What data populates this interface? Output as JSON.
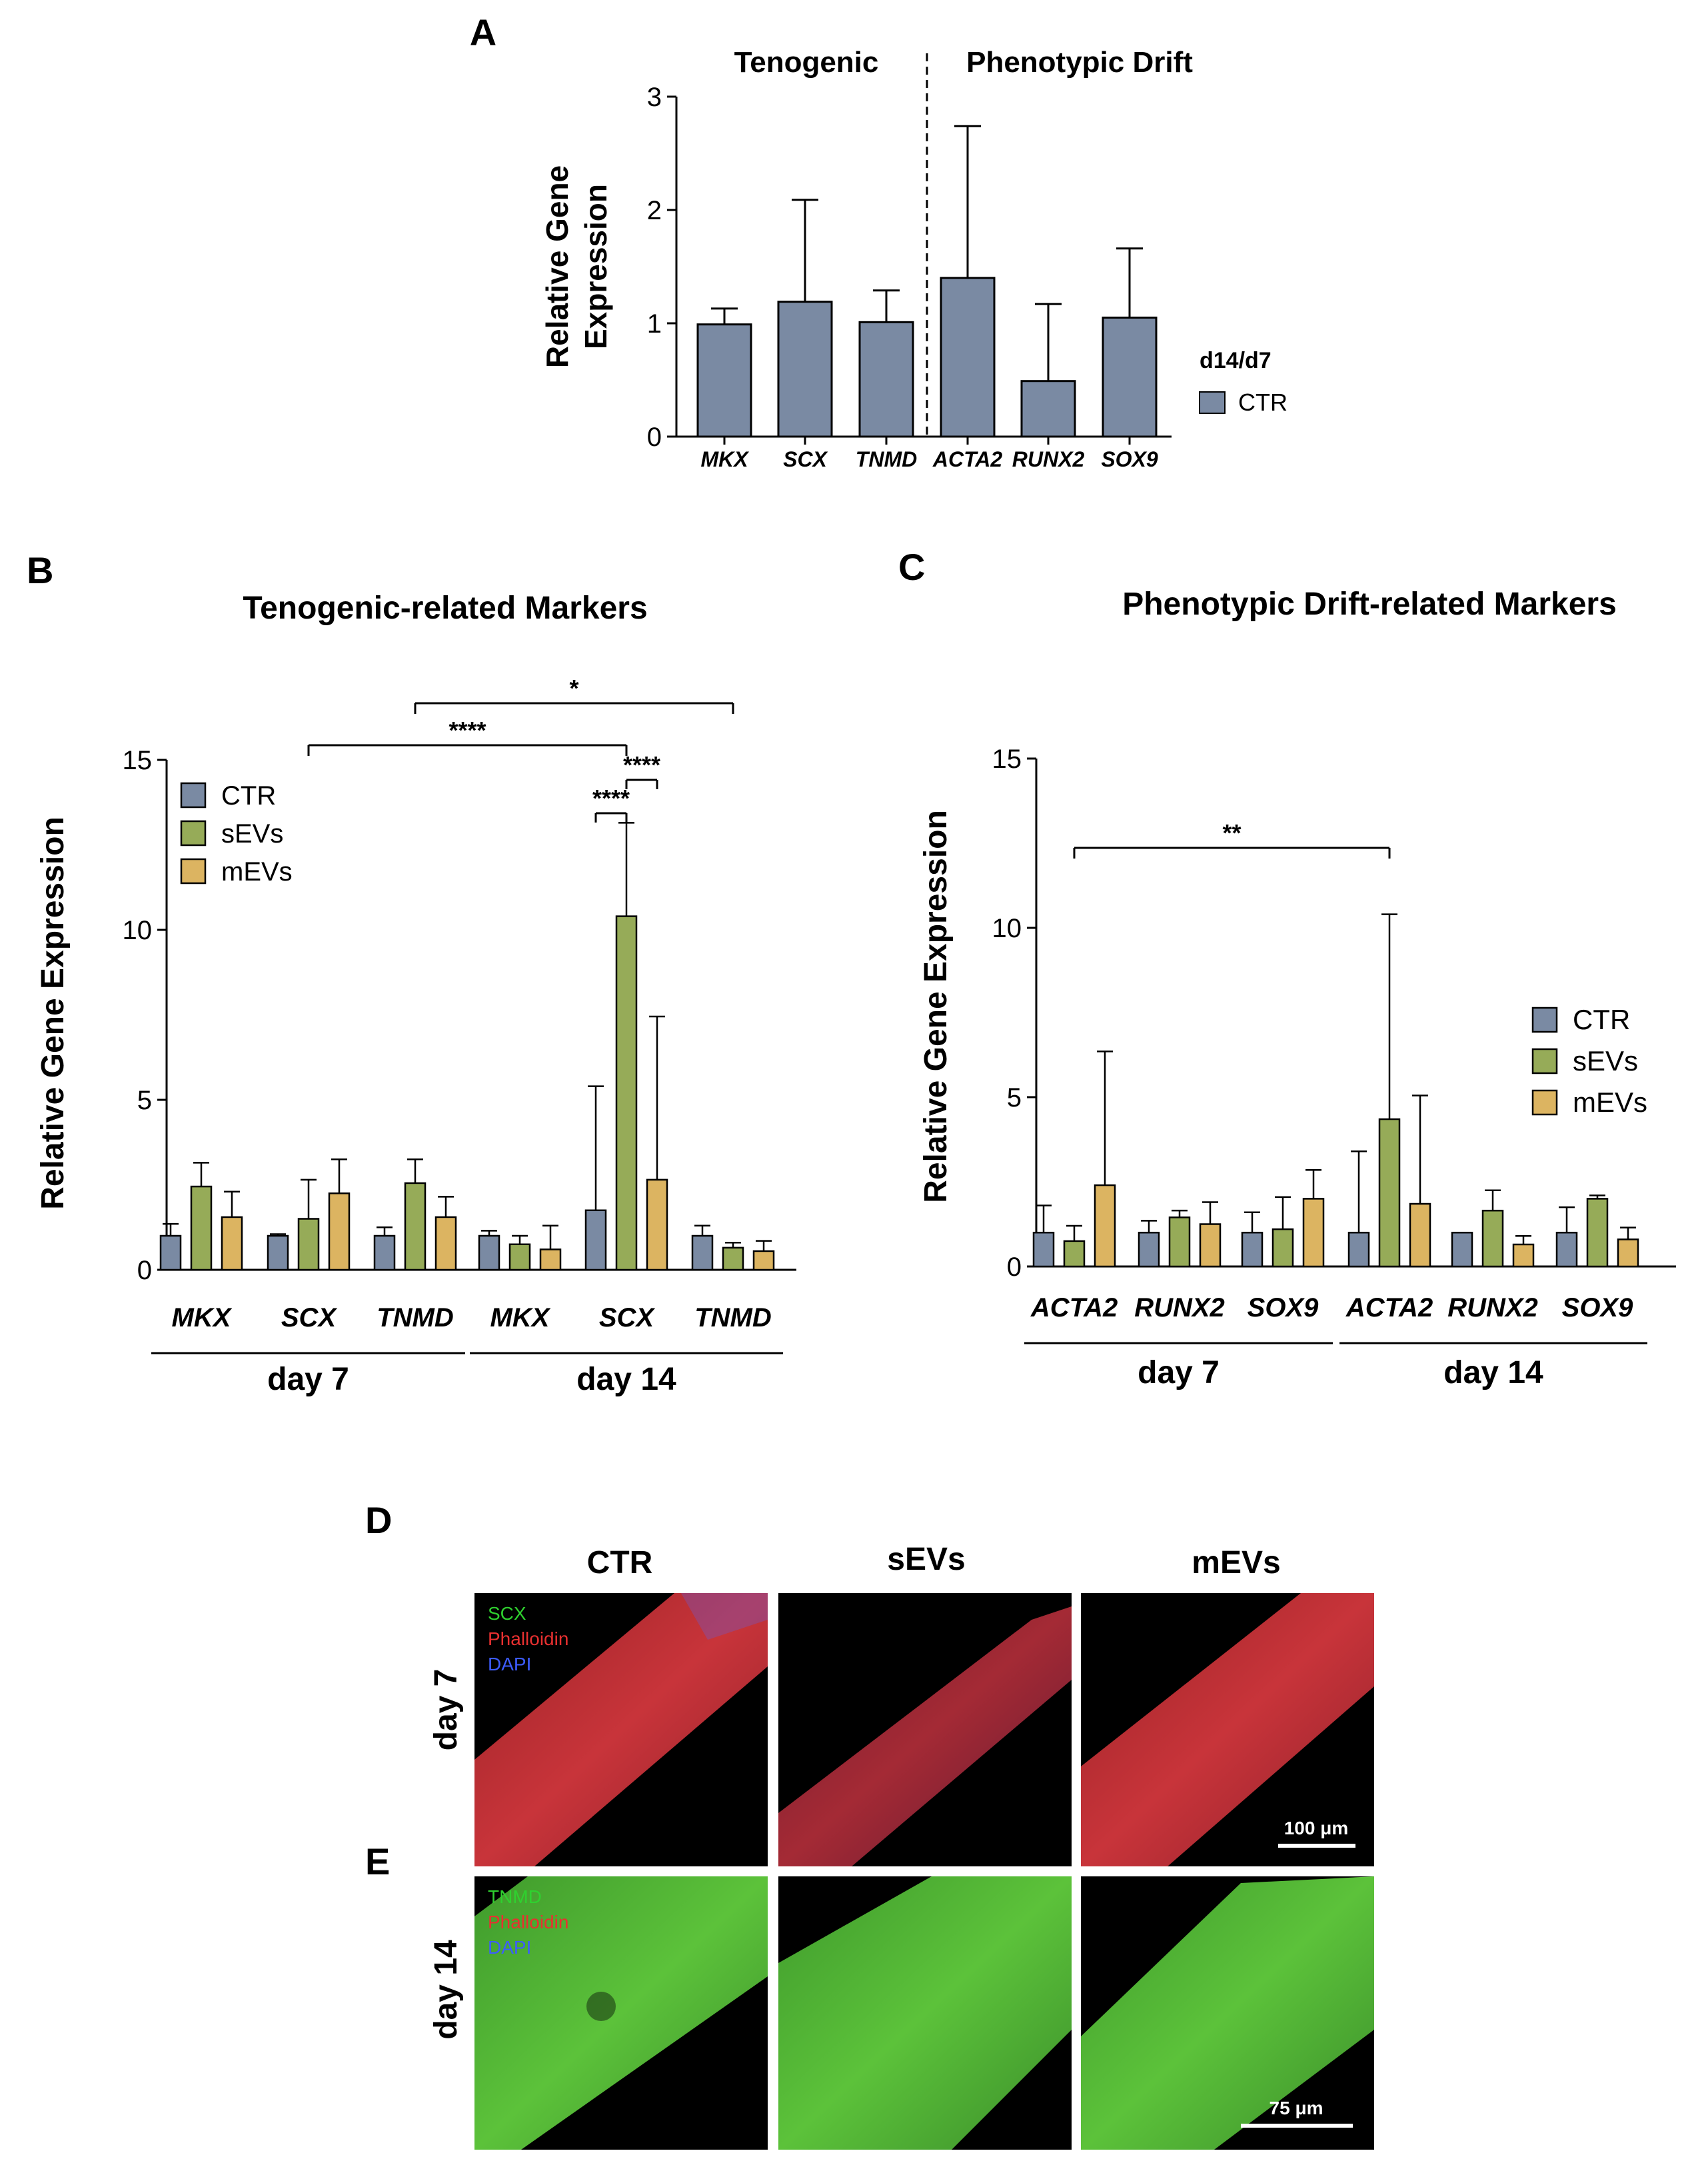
{
  "panels": {
    "A": {
      "letter": "A",
      "group_left": "Tenogenic",
      "group_right": "Phenotypic Drift",
      "legend_title": "d14/d7",
      "legend_item": "CTR"
    },
    "B": {
      "letter": "B",
      "title": "Tenogenic-related Markers"
    },
    "C": {
      "letter": "C",
      "title": "Phenotypic Drift-related Markers"
    },
    "D": {
      "letter": "D"
    },
    "E": {
      "letter": "E"
    }
  },
  "colors": {
    "CTR": "#7a8aa3",
    "sEVs": "#96ab58",
    "mEVs": "#dcb461",
    "axis": "#000000"
  },
  "chart_data": [
    {
      "id": "A",
      "type": "bar",
      "ylabel": "Relative Gene Expression",
      "ylim": [
        0,
        3
      ],
      "yticks": [
        0,
        1,
        2,
        3
      ],
      "categories": [
        "MKX",
        "SCX",
        "TNMD",
        "ACTA2",
        "RUNX2",
        "SOX9"
      ],
      "series": [
        {
          "name": "CTR",
          "values": [
            0.99,
            1.19,
            1.01,
            1.4,
            0.49,
            1.05
          ],
          "errors": [
            1.13,
            2.09,
            1.29,
            2.74,
            1.17,
            1.66
          ]
        }
      ],
      "divider_after_index": 2
    },
    {
      "id": "B",
      "type": "bar",
      "ylabel": "Relative Gene Expression",
      "ylim": [
        0,
        15
      ],
      "yticks": [
        0,
        5,
        10,
        15
      ],
      "categories": [
        "MKX",
        "SCX",
        "TNMD",
        "MKX",
        "SCX",
        "TNMD"
      ],
      "groups": [
        {
          "label": "day 7",
          "start": 0,
          "end": 2
        },
        {
          "label": "day 14",
          "start": 3,
          "end": 5
        }
      ],
      "legend": [
        "CTR",
        "sEVs",
        "mEVs"
      ],
      "series": [
        {
          "name": "CTR",
          "values": [
            1.0,
            1.0,
            1.0,
            1.0,
            1.75,
            1.0
          ],
          "errors": [
            1.35,
            1.05,
            1.25,
            1.15,
            5.4,
            1.3
          ]
        },
        {
          "name": "sEVs",
          "values": [
            2.45,
            1.5,
            2.55,
            0.75,
            10.4,
            0.65
          ],
          "errors": [
            3.15,
            2.65,
            3.25,
            1.0,
            13.15,
            0.8
          ]
        },
        {
          "name": "mEVs",
          "values": [
            1.55,
            2.25,
            1.55,
            0.6,
            2.65,
            0.55
          ],
          "errors": [
            2.3,
            3.25,
            2.15,
            1.3,
            7.45,
            0.85
          ]
        }
      ],
      "significance": [
        {
          "label": "*",
          "from": [
            2,
            1
          ],
          "to": [
            5,
            1
          ]
        },
        {
          "label": "****",
          "from": [
            1,
            1
          ],
          "to": [
            4,
            1
          ]
        },
        {
          "label": "****",
          "from": [
            4,
            0
          ],
          "to": [
            4,
            1
          ]
        },
        {
          "label": "****",
          "from": [
            4,
            1
          ],
          "to": [
            4,
            2
          ]
        }
      ]
    },
    {
      "id": "C",
      "type": "bar",
      "ylabel": "Relative Gene Expression",
      "ylim": [
        0,
        15
      ],
      "yticks": [
        0,
        5,
        10,
        15
      ],
      "categories": [
        "ACTA2",
        "RUNX2",
        "SOX9",
        "ACTA2",
        "RUNX2",
        "SOX9"
      ],
      "groups": [
        {
          "label": "day 7",
          "start": 0,
          "end": 2
        },
        {
          "label": "day 14",
          "start": 3,
          "end": 5
        }
      ],
      "legend": [
        "CTR",
        "sEVs",
        "mEVs"
      ],
      "series": [
        {
          "name": "CTR",
          "values": [
            1.0,
            1.0,
            1.0,
            1.0,
            1.0,
            1.0
          ],
          "errors": [
            1.8,
            1.35,
            1.6,
            3.4,
            1.0,
            1.75
          ]
        },
        {
          "name": "sEVs",
          "values": [
            0.75,
            1.45,
            1.1,
            4.35,
            1.65,
            2.0
          ],
          "errors": [
            1.2,
            1.65,
            2.05,
            10.4,
            2.25,
            2.1
          ]
        },
        {
          "name": "mEVs",
          "values": [
            2.4,
            1.25,
            2.0,
            1.85,
            0.65,
            0.8
          ],
          "errors": [
            6.35,
            1.9,
            2.85,
            5.05,
            0.9,
            1.15
          ]
        }
      ],
      "significance": [
        {
          "label": "**",
          "from": [
            0,
            1
          ],
          "to": [
            3,
            1
          ]
        }
      ]
    }
  ],
  "images": {
    "columns": [
      "CTR",
      "sEVs",
      "mEVs"
    ],
    "rows": [
      "day 7",
      "day 14"
    ],
    "stain_day7": [
      "SCX",
      "Phalloidin",
      "DAPI"
    ],
    "stain_day14": [
      "TNMD",
      "Phalloidin",
      "DAPI"
    ],
    "scale_day7": "100 μm",
    "scale_day14": "75 μm"
  }
}
